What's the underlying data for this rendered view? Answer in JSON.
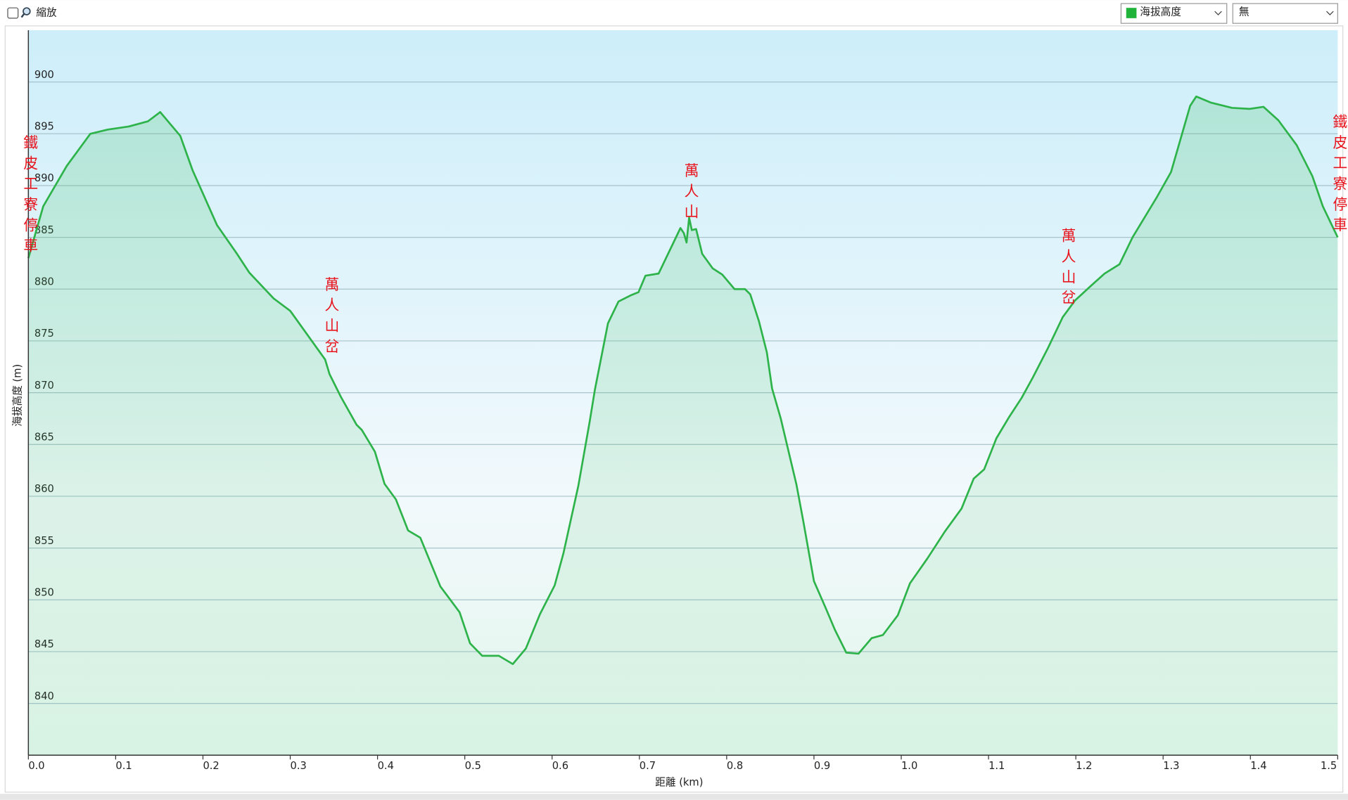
{
  "controls": {
    "zoom_label": "縮放",
    "overlay_option": "無"
  },
  "chart_data": {
    "type": "area",
    "x_label": "距離 (km)",
    "y_label": "海拔高度 (m)",
    "x": [
      0,
      0.017,
      0.044,
      0.071,
      0.091,
      0.115,
      0.137,
      0.151,
      0.174,
      0.188,
      0.216,
      0.239,
      0.253,
      0.281,
      0.3,
      0.34,
      0.345,
      0.358,
      0.376,
      0.382,
      0.397,
      0.408,
      0.421,
      0.435,
      0.449,
      0.472,
      0.494,
      0.506,
      0.52,
      0.539,
      0.555,
      0.57,
      0.586,
      0.603,
      0.613,
      0.63,
      0.643,
      0.649,
      0.664,
      0.676,
      0.69,
      0.699,
      0.707,
      0.722,
      0.747,
      0.751,
      0.754,
      0.757,
      0.76,
      0.765,
      0.772,
      0.784,
      0.795,
      0.809,
      0.821,
      0.827,
      0.837,
      0.846,
      0.852,
      0.862,
      0.88,
      0.888,
      0.9,
      0.913,
      0.924,
      0.937,
      0.951,
      0.966,
      0.979,
      0.996,
      1.01,
      1.03,
      1.05,
      1.069,
      1.083,
      1.095,
      1.109,
      1.124,
      1.138,
      1.151,
      1.168,
      1.185,
      1.199,
      1.217,
      1.233,
      1.25,
      1.265,
      1.293,
      1.309,
      1.331,
      1.338,
      1.355,
      1.379,
      1.399,
      1.415,
      1.432,
      1.453,
      1.471,
      1.483,
      1.5
    ],
    "series": [
      {
        "name": "海拔高度",
        "color": "#2db34a",
        "values": [
          883.0,
          888.0,
          891.9,
          895.0,
          895.4,
          895.7,
          896.2,
          897.1,
          894.8,
          891.5,
          886.2,
          883.4,
          881.6,
          879.1,
          877.9,
          873.2,
          871.8,
          869.6,
          866.9,
          866.4,
          864.3,
          861.2,
          859.7,
          856.7,
          856.0,
          851.3,
          848.8,
          845.8,
          844.6,
          844.6,
          843.8,
          845.3,
          848.6,
          851.4,
          854.5,
          861.0,
          867.2,
          870.3,
          876.7,
          878.8,
          879.4,
          879.7,
          881.3,
          881.5,
          885.9,
          885.4,
          884.5,
          886.9,
          885.7,
          885.8,
          883.4,
          882.0,
          881.4,
          880.0,
          880.0,
          879.5,
          876.9,
          873.9,
          870.4,
          867.5,
          861.1,
          857.5,
          851.8,
          849.3,
          847.1,
          844.9,
          844.8,
          846.3,
          846.6,
          848.5,
          851.6,
          854.0,
          856.6,
          858.8,
          861.7,
          862.6,
          865.6,
          867.7,
          869.5,
          871.5,
          874.3,
          877.3,
          878.9,
          880.3,
          881.5,
          882.4,
          885.0,
          888.9,
          891.3,
          897.7,
          898.6,
          898.0,
          897.5,
          897.4,
          897.6,
          896.3,
          893.9,
          890.9,
          888.0,
          885.0
        ]
      }
    ],
    "xlim": [
      0,
      1.5
    ],
    "ylim": [
      835,
      905
    ],
    "xticks": [
      {
        "value": 0,
        "label": "0.0"
      },
      0.1,
      0.2,
      0.3,
      0.4,
      0.5,
      0.6,
      0.7,
      0.8,
      0.9,
      {
        "value": 1,
        "label": "1.0"
      },
      1.1,
      1.2,
      1.3,
      1.4,
      1.5
    ],
    "yticks": [
      840,
      845,
      850,
      855,
      860,
      865,
      870,
      875,
      880,
      885,
      890,
      895,
      900
    ],
    "grid": true,
    "annotations": [
      {
        "text": "鐵皮工寮停車",
        "x": 0,
        "y": 894.9,
        "color": "#e8141e"
      },
      {
        "text": "萬人山岔",
        "x": 0.345,
        "y": 881.2,
        "color": "#e8141e"
      },
      {
        "text": "萬人山",
        "x": 0.757,
        "y": 892.2,
        "color": "#e8141e"
      },
      {
        "text": "萬人山岔",
        "x": 1.189,
        "y": 885.9,
        "color": "#e8141e"
      },
      {
        "text": "鐵皮工寮停車",
        "x": 1.5,
        "y": 896.9,
        "color": "#e8141e"
      }
    ]
  }
}
